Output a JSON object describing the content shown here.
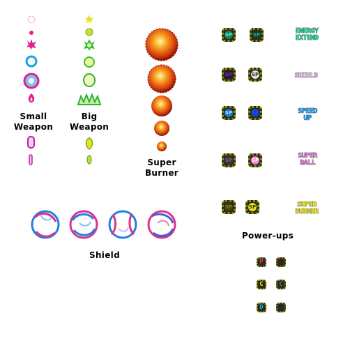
{
  "labels": {
    "small_weapon": [
      "Small",
      "Weapon"
    ],
    "big_weapon": [
      "Big",
      "Weapon"
    ],
    "super_burner": [
      "Super",
      "Burner"
    ],
    "shield": "Shield",
    "powerups": "Power-ups"
  },
  "powerups": {
    "tile_text": "SP",
    "energy_extend": [
      "ENERGY",
      "EXTEND"
    ],
    "shield": "SHIELD",
    "speed_up": [
      "SPEED",
      "UP"
    ],
    "super_ball": [
      "SUPER",
      "BALL"
    ],
    "super_burner": [
      "SUPER",
      "BURNER"
    ],
    "letters": [
      "P",
      "P",
      "C",
      "C",
      "D",
      "D"
    ]
  },
  "colors": {
    "small_weapon": "#e0208c",
    "small_weapon_ring": "#18a0e8",
    "big_weapon": "#30c030",
    "big_weapon_yellow": "#e8e020",
    "burner": "#e0700a",
    "shield_pink": "#e0308c",
    "shield_blue": "#2080e0",
    "energy": "#20e0a0",
    "shield_text": "#f0c0f0",
    "speed": "#20a0f0",
    "ball": "#f080e0",
    "burner_text": "#f0f020"
  }
}
